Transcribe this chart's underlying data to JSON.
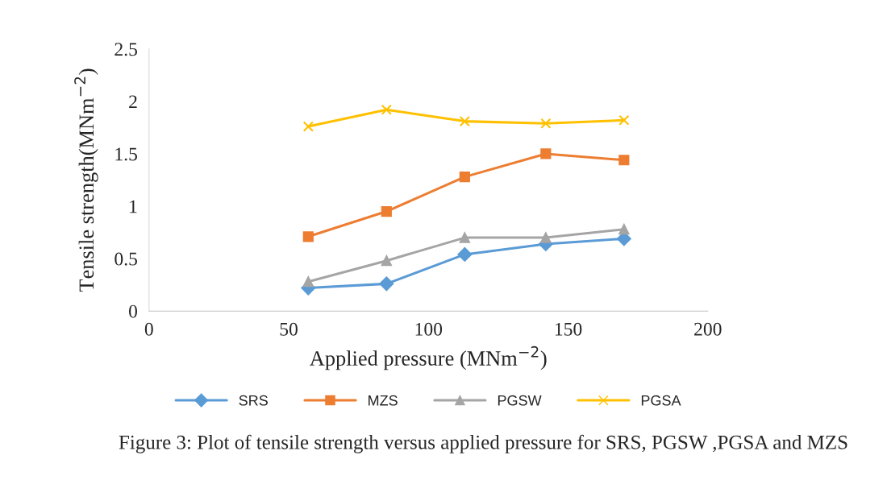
{
  "chart_data": {
    "type": "line",
    "xlabel": "Applied pressure (MNm$^{−2}$)",
    "ylabel": "Tensile strength(MNm$^{−2}$)",
    "x": [
      57,
      85,
      113,
      142,
      170
    ],
    "series": [
      {
        "name": "SRS",
        "color": "#5b9bd5",
        "marker": "diamond",
        "values": [
          0.22,
          0.26,
          0.54,
          0.64,
          0.69
        ]
      },
      {
        "name": "MZS",
        "color": "#ed7d31",
        "marker": "square",
        "values": [
          0.71,
          0.95,
          1.28,
          1.5,
          1.44
        ]
      },
      {
        "name": "PGSW",
        "color": "#a5a5a5",
        "marker": "triangle",
        "values": [
          0.28,
          0.48,
          0.7,
          0.7,
          0.78
        ]
      },
      {
        "name": "PGSA",
        "color": "#ffc000",
        "marker": "cross",
        "values": [
          1.76,
          1.92,
          1.81,
          1.79,
          1.82
        ]
      }
    ],
    "xlim": [
      0,
      200
    ],
    "xticks": [
      0,
      50,
      100,
      150,
      200
    ],
    "ylim": [
      0,
      2.5
    ],
    "yticks": [
      0,
      0.5,
      1,
      1.5,
      2,
      2.5
    ],
    "grid": false,
    "legend": "bottom",
    "line_style": "solid",
    "annotations": [
      "Figure 3: Plot of tensile strength versus applied pressure for SRS, PGSW ,PGSA and MZS"
    ]
  }
}
